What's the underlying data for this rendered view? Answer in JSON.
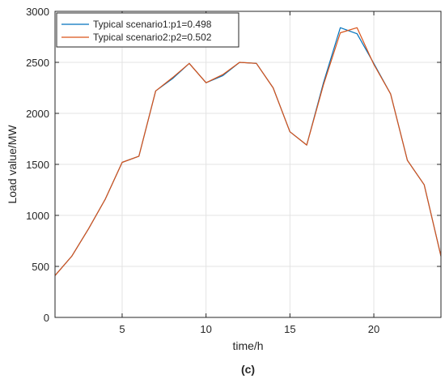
{
  "chart_data": {
    "type": "line",
    "title": "",
    "xlabel": "time/h",
    "ylabel": "Load value/MW",
    "xlim": [
      1,
      24
    ],
    "ylim": [
      0,
      3000
    ],
    "xticks": [
      5,
      10,
      15,
      20
    ],
    "yticks": [
      0,
      500,
      1000,
      1500,
      2000,
      2500,
      3000
    ],
    "grid": true,
    "legend_position": "top-left",
    "x": [
      1,
      2,
      3,
      4,
      5,
      6,
      7,
      8,
      9,
      10,
      11,
      12,
      13,
      14,
      15,
      16,
      17,
      18,
      19,
      20,
      21,
      22,
      23,
      24
    ],
    "series": [
      {
        "name": "Typical scenario1:p1=0.498",
        "color": "#0072bd",
        "values": [
          410,
          600,
          870,
          1160,
          1520,
          1580,
          2220,
          2340,
          2490,
          2300,
          2370,
          2500,
          2490,
          2250,
          1820,
          1690,
          2300,
          2840,
          2780,
          2490,
          2190,
          1540,
          1300,
          600
        ]
      },
      {
        "name": "Typical scenario2:p2=0.502",
        "color": "#d95319",
        "values": [
          410,
          600,
          870,
          1160,
          1520,
          1580,
          2220,
          2350,
          2490,
          2300,
          2380,
          2500,
          2490,
          2250,
          1820,
          1690,
          2280,
          2790,
          2840,
          2480,
          2190,
          1540,
          1300,
          600
        ]
      }
    ]
  },
  "caption": "(c)"
}
